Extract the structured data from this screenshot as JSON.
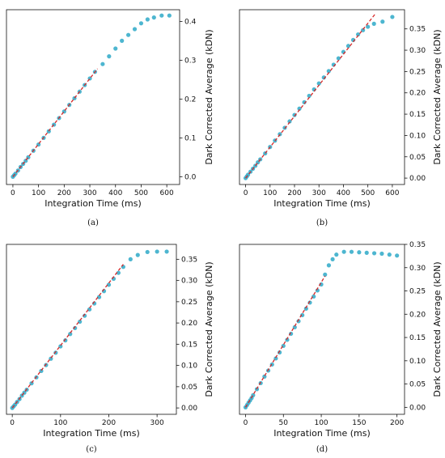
{
  "chart_data": [
    {
      "type": "scatter",
      "caption": "(a)",
      "xlabel": "Integration Time (ms)",
      "ylabel": "Dark Corrected Average (kDN)",
      "xlim": [
        -25,
        650
      ],
      "ylim": [
        -0.02,
        0.43
      ],
      "xticks": [
        0,
        100,
        200,
        300,
        400,
        500,
        600
      ],
      "yticks": [
        0.0,
        0.1,
        0.2,
        0.3,
        0.4
      ],
      "ytick_labels": [
        "0.0",
        "0.1",
        "0.2",
        "0.3",
        "0.4"
      ],
      "y_axis_side": "right",
      "marker_color": "#3aaecb",
      "fit_color": "#d62728",
      "points": [
        [
          0,
          0.0
        ],
        [
          5,
          0.004
        ],
        [
          10,
          0.008
        ],
        [
          20,
          0.016
        ],
        [
          30,
          0.025
        ],
        [
          40,
          0.033
        ],
        [
          50,
          0.041
        ],
        [
          60,
          0.05
        ],
        [
          80,
          0.067
        ],
        [
          100,
          0.083
        ],
        [
          120,
          0.1
        ],
        [
          140,
          0.117
        ],
        [
          160,
          0.134
        ],
        [
          180,
          0.151
        ],
        [
          200,
          0.168
        ],
        [
          220,
          0.185
        ],
        [
          240,
          0.202
        ],
        [
          260,
          0.219
        ],
        [
          280,
          0.236
        ],
        [
          300,
          0.253
        ],
        [
          320,
          0.27
        ],
        [
          350,
          0.29
        ],
        [
          375,
          0.31
        ],
        [
          400,
          0.33
        ],
        [
          425,
          0.35
        ],
        [
          450,
          0.365
        ],
        [
          475,
          0.38
        ],
        [
          500,
          0.395
        ],
        [
          525,
          0.405
        ],
        [
          550,
          0.41
        ],
        [
          580,
          0.415
        ],
        [
          610,
          0.415
        ]
      ],
      "fit": [
        [
          0,
          0.0
        ],
        [
          330,
          0.278
        ]
      ]
    },
    {
      "type": "scatter",
      "caption": "(b)",
      "xlabel": "Integration Time (ms)",
      "ylabel": "Dark Corrected Average (kDN)",
      "xlim": [
        -25,
        650
      ],
      "ylim": [
        -0.015,
        0.395
      ],
      "xticks": [
        0,
        100,
        200,
        300,
        400,
        500,
        600
      ],
      "yticks": [
        0.0,
        0.05,
        0.1,
        0.15,
        0.2,
        0.25,
        0.3,
        0.35
      ],
      "ytick_labels": [
        "0.00",
        "0.05",
        "0.10",
        "0.15",
        "0.20",
        "0.25",
        "0.30",
        "0.35"
      ],
      "y_axis_side": "right",
      "marker_color": "#3aaecb",
      "fit_color": "#d62728",
      "points": [
        [
          0,
          0.0
        ],
        [
          5,
          0.004
        ],
        [
          10,
          0.008
        ],
        [
          20,
          0.015
        ],
        [
          30,
          0.022
        ],
        [
          40,
          0.029
        ],
        [
          50,
          0.037
        ],
        [
          60,
          0.044
        ],
        [
          80,
          0.058
        ],
        [
          100,
          0.073
        ],
        [
          120,
          0.088
        ],
        [
          140,
          0.103
        ],
        [
          160,
          0.118
        ],
        [
          180,
          0.133
        ],
        [
          200,
          0.148
        ],
        [
          220,
          0.163
        ],
        [
          240,
          0.178
        ],
        [
          260,
          0.193
        ],
        [
          280,
          0.208
        ],
        [
          300,
          0.222
        ],
        [
          320,
          0.236
        ],
        [
          340,
          0.251
        ],
        [
          360,
          0.266
        ],
        [
          380,
          0.281
        ],
        [
          400,
          0.296
        ],
        [
          420,
          0.31
        ],
        [
          440,
          0.324
        ],
        [
          460,
          0.337
        ],
        [
          480,
          0.347
        ],
        [
          500,
          0.355
        ],
        [
          525,
          0.362
        ],
        [
          560,
          0.367
        ],
        [
          600,
          0.378
        ]
      ],
      "fit": [
        [
          0,
          0.0
        ],
        [
          530,
          0.385
        ]
      ]
    },
    {
      "type": "scatter",
      "caption": "(c)",
      "xlabel": "Integration Time (ms)",
      "ylabel": "Dark Corrected Average (kDN)",
      "xlim": [
        -12,
        340
      ],
      "ylim": [
        -0.015,
        0.385
      ],
      "xticks": [
        0,
        100,
        200,
        300
      ],
      "yticks": [
        0.0,
        0.05,
        0.1,
        0.15,
        0.2,
        0.25,
        0.3,
        0.35
      ],
      "ytick_labels": [
        "0.00",
        "0.05",
        "0.10",
        "0.15",
        "0.20",
        "0.25",
        "0.30",
        "0.35"
      ],
      "y_axis_side": "right",
      "marker_color": "#3aaecb",
      "fit_color": "#d62728",
      "points": [
        [
          0,
          0.0
        ],
        [
          3,
          0.004
        ],
        [
          6,
          0.008
        ],
        [
          10,
          0.014
        ],
        [
          15,
          0.021
        ],
        [
          20,
          0.029
        ],
        [
          25,
          0.036
        ],
        [
          30,
          0.043
        ],
        [
          40,
          0.058
        ],
        [
          50,
          0.072
        ],
        [
          60,
          0.087
        ],
        [
          70,
          0.101
        ],
        [
          80,
          0.116
        ],
        [
          90,
          0.13
        ],
        [
          100,
          0.145
        ],
        [
          110,
          0.159
        ],
        [
          120,
          0.174
        ],
        [
          130,
          0.188
        ],
        [
          140,
          0.203
        ],
        [
          150,
          0.217
        ],
        [
          160,
          0.232
        ],
        [
          170,
          0.246
        ],
        [
          180,
          0.261
        ],
        [
          190,
          0.275
        ],
        [
          200,
          0.29
        ],
        [
          210,
          0.304
        ],
        [
          220,
          0.318
        ],
        [
          230,
          0.332
        ],
        [
          245,
          0.35
        ],
        [
          260,
          0.36
        ],
        [
          280,
          0.367
        ],
        [
          300,
          0.368
        ],
        [
          320,
          0.368
        ]
      ],
      "fit": [
        [
          0,
          0.0
        ],
        [
          230,
          0.338
        ]
      ]
    },
    {
      "type": "scatter",
      "caption": "(d)",
      "xlabel": "Integration Time (ms)",
      "ylabel": "Dark Corrected Average (kDN)",
      "xlim": [
        -8,
        210
      ],
      "ylim": [
        -0.015,
        0.35
      ],
      "xticks": [
        0,
        50,
        100,
        150,
        200
      ],
      "yticks": [
        0.0,
        0.05,
        0.1,
        0.15,
        0.2,
        0.25,
        0.3,
        0.35
      ],
      "ytick_labels": [
        "0.00",
        "0.05",
        "0.10",
        "0.15",
        "0.20",
        "0.25",
        "0.30",
        "0.35"
      ],
      "y_axis_side": "right",
      "marker_color": "#3aaecb",
      "fit_color": "#d62728",
      "points": [
        [
          0,
          0.0
        ],
        [
          2,
          0.005
        ],
        [
          4,
          0.01
        ],
        [
          6,
          0.015
        ],
        [
          8,
          0.02
        ],
        [
          10,
          0.026
        ],
        [
          15,
          0.039
        ],
        [
          20,
          0.052
        ],
        [
          25,
          0.066
        ],
        [
          30,
          0.079
        ],
        [
          35,
          0.092
        ],
        [
          40,
          0.105
        ],
        [
          45,
          0.118
        ],
        [
          50,
          0.132
        ],
        [
          55,
          0.145
        ],
        [
          60,
          0.158
        ],
        [
          65,
          0.172
        ],
        [
          70,
          0.185
        ],
        [
          75,
          0.198
        ],
        [
          80,
          0.212
        ],
        [
          85,
          0.225
        ],
        [
          90,
          0.238
        ],
        [
          95,
          0.251
        ],
        [
          100,
          0.264
        ],
        [
          105,
          0.285
        ],
        [
          110,
          0.305
        ],
        [
          115,
          0.318
        ],
        [
          120,
          0.328
        ],
        [
          130,
          0.334
        ],
        [
          140,
          0.334
        ],
        [
          150,
          0.333
        ],
        [
          160,
          0.332
        ],
        [
          170,
          0.331
        ],
        [
          180,
          0.33
        ],
        [
          190,
          0.328
        ],
        [
          200,
          0.326
        ]
      ],
      "fit": [
        [
          0,
          0.0
        ],
        [
          105,
          0.282
        ]
      ]
    }
  ]
}
